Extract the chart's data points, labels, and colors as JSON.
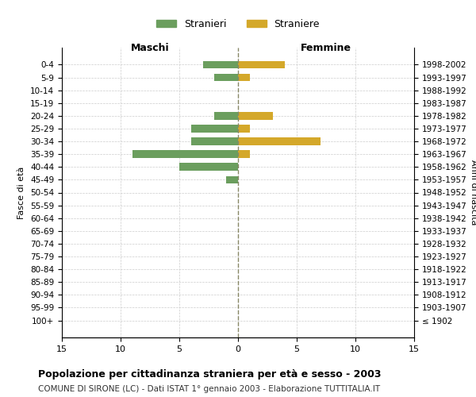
{
  "age_groups": [
    "100+",
    "95-99",
    "90-94",
    "85-89",
    "80-84",
    "75-79",
    "70-74",
    "65-69",
    "60-64",
    "55-59",
    "50-54",
    "45-49",
    "40-44",
    "35-39",
    "30-34",
    "25-29",
    "20-24",
    "15-19",
    "10-14",
    "5-9",
    "0-4"
  ],
  "anni_nascita": [
    "≤ 1902",
    "1903-1907",
    "1908-1912",
    "1913-1917",
    "1918-1922",
    "1923-1927",
    "1928-1932",
    "1933-1937",
    "1938-1942",
    "1943-1947",
    "1948-1952",
    "1953-1957",
    "1958-1962",
    "1963-1967",
    "1968-1972",
    "1973-1977",
    "1978-1982",
    "1983-1987",
    "1988-1992",
    "1993-1997",
    "1998-2002"
  ],
  "maschi": [
    0,
    0,
    0,
    0,
    0,
    0,
    0,
    0,
    0,
    0,
    0,
    1,
    5,
    9,
    4,
    4,
    2,
    0,
    0,
    2,
    3
  ],
  "femmine": [
    0,
    0,
    0,
    0,
    0,
    0,
    0,
    0,
    0,
    0,
    0,
    0,
    0,
    1,
    7,
    1,
    3,
    0,
    0,
    1,
    4
  ],
  "color_maschi": "#6b9e5e",
  "color_femmine": "#d4a82a",
  "title": "Popolazione per cittadinanza straniera per età e sesso - 2003",
  "subtitle": "COMUNE DI SIRONE (LC) - Dati ISTAT 1° gennaio 2003 - Elaborazione TUTTITALIA.IT",
  "xlabel_left": "Maschi",
  "xlabel_right": "Femmine",
  "ylabel_left": "Fasce di età",
  "ylabel_right": "Anni di nascita",
  "xlim": 15,
  "legend_stranieri": "Stranieri",
  "legend_straniere": "Straniere",
  "background_color": "#ffffff",
  "grid_color": "#cccccc"
}
